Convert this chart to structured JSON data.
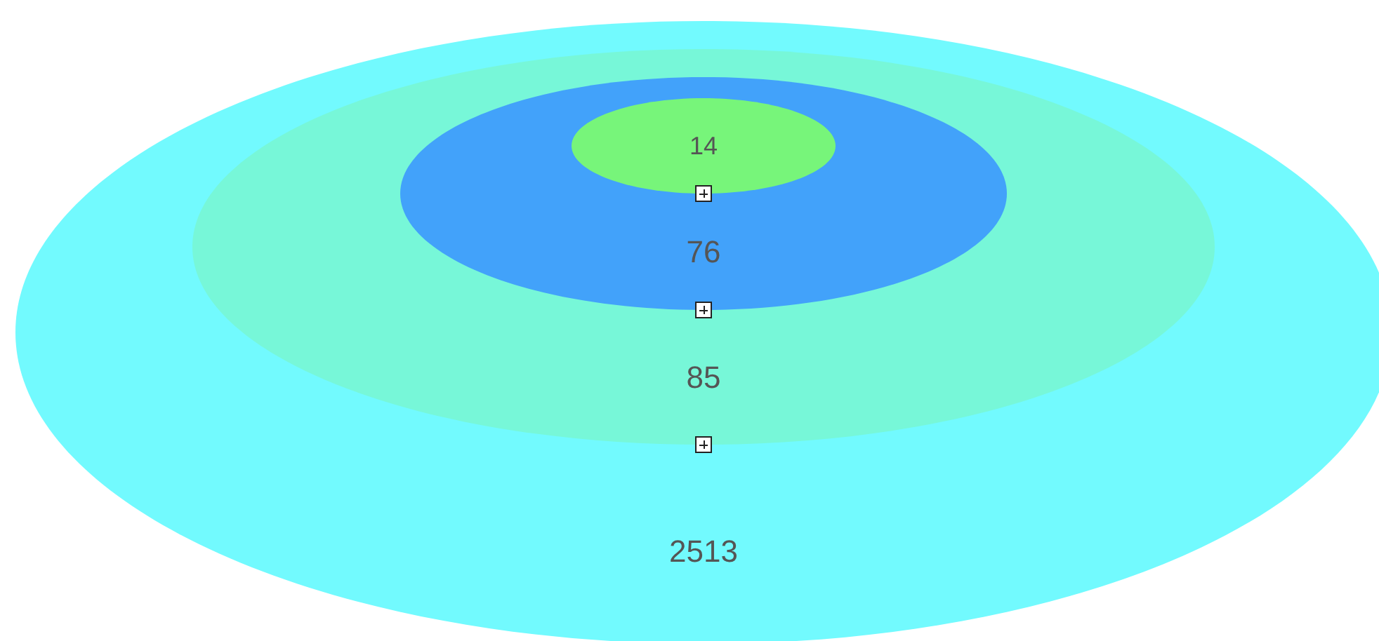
{
  "chart_data": {
    "type": "other",
    "values": [
      14,
      76,
      85,
      2513
    ],
    "colors": [
      "#77f57a",
      "#42a2fa",
      "#77f7d8",
      "#72fafe"
    ],
    "data_labels": true
  }
}
